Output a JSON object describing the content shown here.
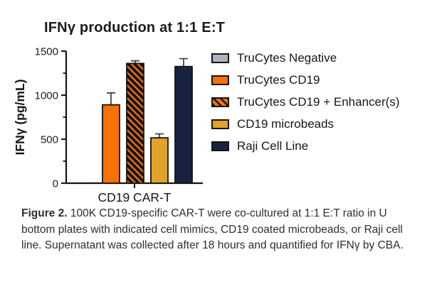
{
  "figure": {
    "caption": {
      "label": "Figure 2.",
      "label_color": "#F5821F",
      "text": "100K CD19-specific CAR-T were co-cultured at 1:1 E:T ratio in U bottom plates with indicated cell mimics, CD19 coated microbeads, or Raji cell line. Supernatant was collected after 18 hours and quantified for IFNγ by CBA."
    }
  },
  "chart_data": {
    "type": "bar",
    "title": "IFNγ production at 1:1 E:T",
    "xlabel": "CD19 CAR-T",
    "ylabel": "IFNγ (pg/mL)",
    "ylim": [
      0,
      1500
    ],
    "yticks_major": [
      0,
      500,
      1000,
      1500
    ],
    "yticks_minor": [
      250,
      750,
      1250
    ],
    "grid": false,
    "legend_position": "right",
    "categories": [
      "CD19 CAR-T"
    ],
    "axis_color": "#141414",
    "error_bar_color": "#3c3c3c",
    "series": [
      {
        "name": "TruCytes Negative",
        "value": 0,
        "error_plus": 0,
        "color": "#ADB4BF",
        "pattern": "solid",
        "bar_visible": false
      },
      {
        "name": "TruCytes CD19",
        "value": 890,
        "error_plus": 135,
        "color": "#F87105",
        "pattern": "solid",
        "bar_visible": true
      },
      {
        "name": "TruCytes CD19 + Enhancer(s)",
        "value": 1360,
        "error_plus": 30,
        "color": "#F87105",
        "pattern": "diagonal-hatch",
        "bar_visible": true
      },
      {
        "name": "CD19 microbeads",
        "value": 515,
        "error_plus": 45,
        "color": "#DFA32B",
        "pattern": "solid",
        "bar_visible": true
      },
      {
        "name": "Raji Cell Line",
        "value": 1325,
        "error_plus": 90,
        "color": "#182240",
        "pattern": "solid",
        "bar_visible": true
      }
    ]
  }
}
